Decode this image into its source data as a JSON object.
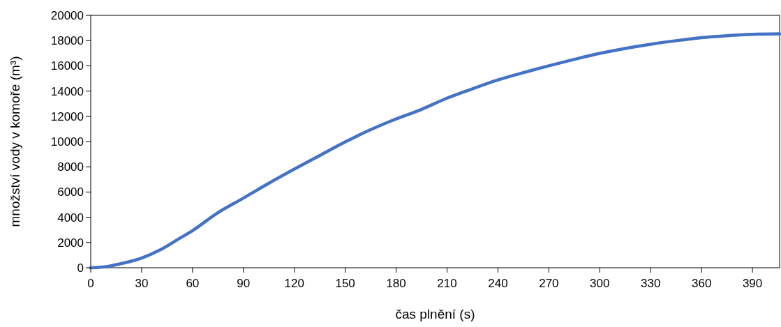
{
  "chart_data": {
    "type": "line",
    "xlabel": "čas plnění (s)",
    "ylabel": "množství vody v komoře (m³)",
    "xlim": [
      0,
      406
    ],
    "xticks": [
      0,
      30,
      60,
      90,
      120,
      150,
      180,
      210,
      240,
      270,
      300,
      330,
      360,
      390
    ],
    "ylim": [
      0,
      20000
    ],
    "yticks": [
      0,
      2000,
      4000,
      6000,
      8000,
      10000,
      12000,
      14000,
      16000,
      18000,
      20000
    ],
    "grid": false,
    "marker": "none",
    "line_style": "solid",
    "series": [
      {
        "color": "#4472c4",
        "x": [
          0,
          10,
          17,
          30,
          41,
          52,
          60,
          74,
          90,
          105,
          120,
          136,
          150,
          164,
          177,
          195,
          210,
          225,
          240,
          255,
          270,
          285,
          300,
          315,
          330,
          345,
          360,
          375,
          390,
          406
        ],
        "values": [
          0,
          100,
          300,
          770,
          1420,
          2300,
          2940,
          4280,
          5520,
          6700,
          7820,
          8970,
          9970,
          10880,
          11630,
          12550,
          13440,
          14180,
          14880,
          15460,
          16000,
          16510,
          16990,
          17380,
          17710,
          17990,
          18230,
          18390,
          18500,
          18540
        ]
      }
    ]
  }
}
